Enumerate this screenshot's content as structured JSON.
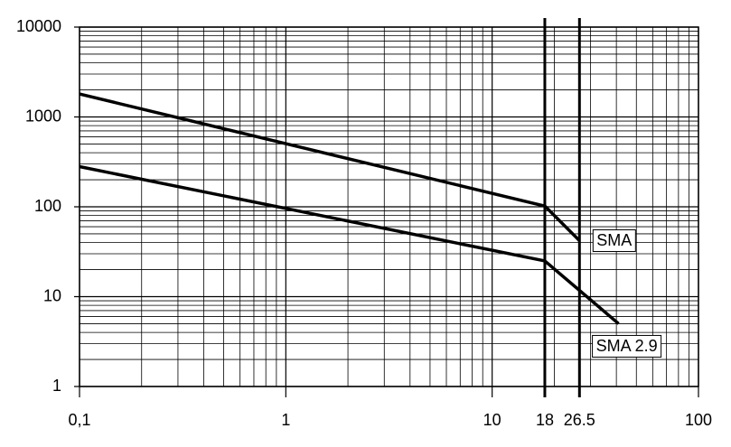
{
  "chart_data": {
    "type": "line",
    "xscale": "log",
    "yscale": "log",
    "grid": true,
    "color": "#000000",
    "xlim": [
      0.1,
      100
    ],
    "ylim": [
      1,
      10000
    ],
    "xticks": [
      {
        "value": 0.1,
        "label": "0,1"
      },
      1,
      10,
      18,
      26.5,
      100
    ],
    "yticks": [
      1,
      10,
      100,
      1000,
      10000
    ],
    "series": [
      {
        "name": "SMA",
        "color": "#000000",
        "x": [
          0.1,
          18,
          26.5
        ],
        "values": [
          1800,
          102,
          42
        ]
      },
      {
        "name": "SMA 2.9",
        "color": "#000000",
        "x": [
          0.1,
          18,
          41
        ],
        "values": [
          280,
          25,
          5
        ]
      }
    ]
  }
}
